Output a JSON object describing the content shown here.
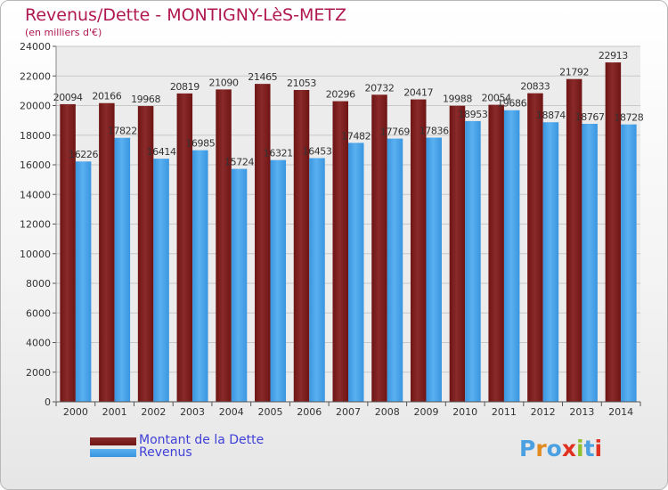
{
  "title": "Revenus/Dette - MONTIGNY-LèS-METZ",
  "subtitle": "(en milliers d'€)",
  "colors": {
    "dette": "#6e1414",
    "dette_light": "#8a2a2a",
    "revenus": "#3a96e0",
    "revenus_light": "#5ab0f0",
    "title": "#b01850",
    "legend_text": "#4040d8"
  },
  "legend": {
    "items": [
      {
        "label": "Montant de la Dette",
        "color": "#6e1414"
      },
      {
        "label": "Revenus",
        "color": "#3a96e0"
      }
    ]
  },
  "logo": {
    "text": "Proxiti",
    "letter_colors": [
      "#4aa0e0",
      "#e08a20",
      "#4aa0e0",
      "#e03020",
      "#90c030",
      "#4aa0e0",
      "#e03020"
    ]
  },
  "chart_data": {
    "type": "bar",
    "categories": [
      "2000",
      "2001",
      "2002",
      "2003",
      "2004",
      "2005",
      "2006",
      "2007",
      "2008",
      "2009",
      "2010",
      "2011",
      "2012",
      "2013",
      "2014"
    ],
    "series": [
      {
        "name": "Montant de la Dette",
        "values": [
          20094,
          20166,
          19968,
          20819,
          21090,
          21465,
          21053,
          20296,
          20732,
          20417,
          19988,
          20054,
          20833,
          21792,
          22913
        ]
      },
      {
        "name": "Revenus",
        "values": [
          16226,
          17822,
          16414,
          16985,
          15724,
          16321,
          16453,
          17482,
          17769,
          17836,
          18953,
          19686,
          18874,
          18767,
          18728
        ]
      }
    ],
    "ylim": [
      0,
      24000
    ],
    "yticks": [
      0,
      2000,
      4000,
      6000,
      8000,
      10000,
      12000,
      14000,
      16000,
      18000,
      20000,
      22000,
      24000
    ],
    "grid": true,
    "legend_position": "bottom-left"
  }
}
